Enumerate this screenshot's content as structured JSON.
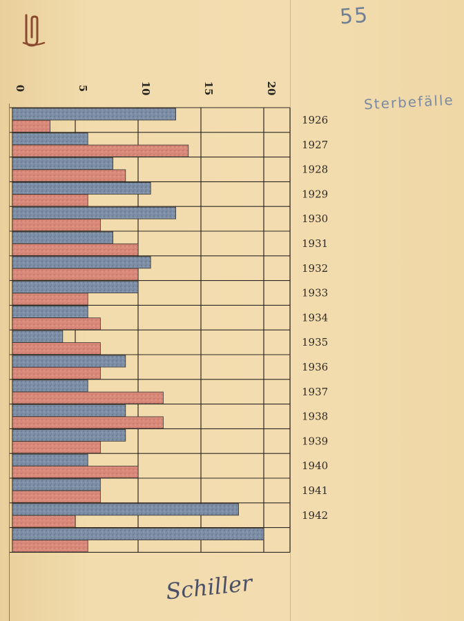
{
  "page_number": "55",
  "margin_note": "Sterbefälle",
  "signature": "Schiller",
  "colors": {
    "series_a": "#7d8fa6",
    "series_b": "#d9897a",
    "grid": "#2b2622"
  },
  "icons": {
    "paperclip": "paperclip-icon"
  },
  "chart_data": {
    "type": "bar",
    "orientation": "horizontal",
    "title": "",
    "xlabel": "",
    "ylabel": "",
    "xlim": [
      0,
      22
    ],
    "x_ticks": [
      0,
      5,
      10,
      15,
      20
    ],
    "grid": true,
    "categories": [
      "1926",
      "1927",
      "1928",
      "1929",
      "1930",
      "1931",
      "1932",
      "1933",
      "1934",
      "1935",
      "1936",
      "1937",
      "1938",
      "1939",
      "1940",
      "1941",
      "1942"
    ],
    "series": [
      {
        "values": [
          13,
          6,
          8,
          11,
          13,
          8,
          11,
          10,
          6,
          4,
          9,
          6,
          9,
          9,
          6,
          7,
          18
        ]
      },
      {
        "values": [
          3,
          14,
          9,
          6,
          7,
          10,
          10,
          6,
          7,
          7,
          7,
          12,
          12,
          7,
          10,
          7,
          5
        ]
      }
    ],
    "extra_bars": [
      {
        "values": [
          20,
          6
        ]
      }
    ]
  }
}
